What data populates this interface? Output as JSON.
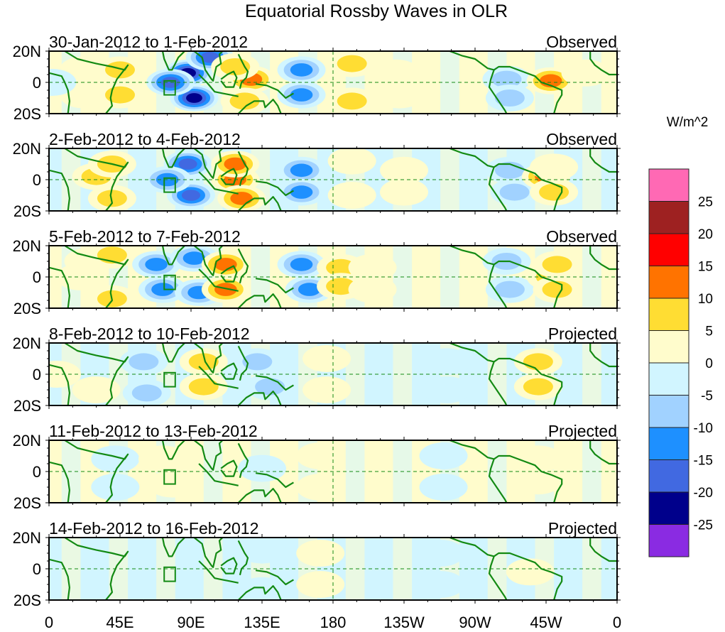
{
  "chart_data": {
    "type": "heatmap",
    "title": "Equatorial Rossby Waves in OLR",
    "colorbar": {
      "unit_label": "W/m^2",
      "levels": [
        25,
        20,
        15,
        10,
        5,
        0,
        -5,
        -10,
        -15,
        -20,
        -25
      ],
      "colors": [
        "#ff69b4",
        "#9e2121",
        "#ff0000",
        "#ff7300",
        "#ffdd33",
        "#fffccc",
        "#d1f5ff",
        "#a1d2ff",
        "#1e90ff",
        "#4169e1",
        "#00008b",
        "#8a2be2"
      ]
    },
    "x_axis": {
      "range_deg": [
        0,
        360
      ],
      "ticks": [
        0,
        45,
        90,
        135,
        180,
        225,
        270,
        315,
        360
      ],
      "tick_labels": [
        "0",
        "45E",
        "90E",
        "135E",
        "180",
        "135W",
        "90W",
        "45W",
        "0"
      ]
    },
    "y_axis": {
      "range_deg": [
        -20,
        20
      ],
      "ticks": [
        20,
        0,
        -20
      ],
      "tick_labels": [
        "20N",
        "0",
        "20S"
      ]
    },
    "panels": [
      {
        "date_range": "30-Jan-2012 to 1-Feb-2012",
        "status": "Observed",
        "anomalies": [
          {
            "lon": 22,
            "lat": 8,
            "value": 7
          },
          {
            "lon": 22,
            "lat": -8,
            "value": 7
          },
          {
            "lon": 45,
            "lat": 8,
            "value": 12
          },
          {
            "lon": 45,
            "lat": -8,
            "value": 12
          },
          {
            "lon": 2,
            "lat": 0,
            "value": -7
          },
          {
            "lon": 88,
            "lat": 6,
            "value": -24
          },
          {
            "lon": 92,
            "lat": -10,
            "value": -24
          },
          {
            "lon": 77,
            "lat": 0,
            "value": -22
          },
          {
            "lon": 102,
            "lat": 16,
            "value": -22
          },
          {
            "lon": 128,
            "lat": 2,
            "value": 17
          },
          {
            "lon": 118,
            "lat": 10,
            "value": 12
          },
          {
            "lon": 124,
            "lat": -12,
            "value": 12
          },
          {
            "lon": 160,
            "lat": 8,
            "value": -16
          },
          {
            "lon": 160,
            "lat": -8,
            "value": -16
          },
          {
            "lon": 192,
            "lat": 12,
            "value": 11
          },
          {
            "lon": 192,
            "lat": -12,
            "value": 11
          },
          {
            "lon": 220,
            "lat": 6,
            "value": 6
          },
          {
            "lon": 222,
            "lat": -8,
            "value": 6
          },
          {
            "lon": 290,
            "lat": 2,
            "value": -12
          },
          {
            "lon": 292,
            "lat": -10,
            "value": -12
          },
          {
            "lon": 318,
            "lat": 1,
            "value": 17
          },
          {
            "lon": 340,
            "lat": 6,
            "value": 6
          }
        ]
      },
      {
        "date_range": "2-Feb-2012 to 4-Feb-2012",
        "status": "Observed",
        "anomalies": [
          {
            "lon": 30,
            "lat": 2,
            "value": 11
          },
          {
            "lon": 40,
            "lat": 10,
            "value": 8
          },
          {
            "lon": 40,
            "lat": -12,
            "value": 10
          },
          {
            "lon": 88,
            "lat": 10,
            "value": -22
          },
          {
            "lon": 90,
            "lat": -10,
            "value": -22
          },
          {
            "lon": 75,
            "lat": 0,
            "value": -14
          },
          {
            "lon": 118,
            "lat": 0,
            "value": 14
          },
          {
            "lon": 118,
            "lat": 10,
            "value": 16
          },
          {
            "lon": 122,
            "lat": -12,
            "value": 16
          },
          {
            "lon": 160,
            "lat": 6,
            "value": -16
          },
          {
            "lon": 160,
            "lat": -8,
            "value": -16
          },
          {
            "lon": 192,
            "lat": 12,
            "value": 7
          },
          {
            "lon": 192,
            "lat": -10,
            "value": 7
          },
          {
            "lon": 225,
            "lat": 6,
            "value": 5
          },
          {
            "lon": 225,
            "lat": -8,
            "value": 5
          },
          {
            "lon": 292,
            "lat": 6,
            "value": -8
          },
          {
            "lon": 295,
            "lat": -8,
            "value": -12
          },
          {
            "lon": 315,
            "lat": 2,
            "value": 14
          },
          {
            "lon": 320,
            "lat": 8,
            "value": 7
          },
          {
            "lon": 320,
            "lat": -8,
            "value": 11
          }
        ]
      },
      {
        "date_range": "5-Feb-2012 to 7-Feb-2012",
        "status": "Observed",
        "anomalies": [
          {
            "lon": 20,
            "lat": 0,
            "value": 6
          },
          {
            "lon": 25,
            "lat": 10,
            "value": 6
          },
          {
            "lon": 40,
            "lat": 14,
            "value": 8
          },
          {
            "lon": 40,
            "lat": -14,
            "value": 8
          },
          {
            "lon": 68,
            "lat": 8,
            "value": -13
          },
          {
            "lon": 72,
            "lat": -8,
            "value": -15
          },
          {
            "lon": 92,
            "lat": 12,
            "value": -13
          },
          {
            "lon": 95,
            "lat": -10,
            "value": -15
          },
          {
            "lon": 112,
            "lat": 8,
            "value": 14
          },
          {
            "lon": 112,
            "lat": -8,
            "value": 16
          },
          {
            "lon": 160,
            "lat": 8,
            "value": -16
          },
          {
            "lon": 165,
            "lat": -8,
            "value": -16
          },
          {
            "lon": 185,
            "lat": 6,
            "value": 9
          },
          {
            "lon": 185,
            "lat": -6,
            "value": 9
          },
          {
            "lon": 205,
            "lat": 6,
            "value": 6
          },
          {
            "lon": 205,
            "lat": -8,
            "value": 6
          },
          {
            "lon": 290,
            "lat": 10,
            "value": -8
          },
          {
            "lon": 292,
            "lat": -8,
            "value": -8
          },
          {
            "lon": 318,
            "lat": 0,
            "value": 11
          },
          {
            "lon": 322,
            "lat": 8,
            "value": 10
          },
          {
            "lon": 322,
            "lat": -8,
            "value": 11
          }
        ]
      },
      {
        "date_range": "8-Feb-2012 to 10-Feb-2012",
        "status": "Projected",
        "anomalies": [
          {
            "lon": 5,
            "lat": 0,
            "value": 4
          },
          {
            "lon": 30,
            "lat": -10,
            "value": 4
          },
          {
            "lon": 60,
            "lat": 8,
            "value": -11
          },
          {
            "lon": 62,
            "lat": -12,
            "value": -11
          },
          {
            "lon": 98,
            "lat": 8,
            "value": 11
          },
          {
            "lon": 98,
            "lat": -8,
            "value": 11
          },
          {
            "lon": 132,
            "lat": 8,
            "value": -11
          },
          {
            "lon": 140,
            "lat": -8,
            "value": -10
          },
          {
            "lon": 176,
            "lat": 10,
            "value": 6
          },
          {
            "lon": 176,
            "lat": -10,
            "value": 6
          },
          {
            "lon": 252,
            "lat": 8,
            "value": -7
          },
          {
            "lon": 252,
            "lat": -10,
            "value": -7
          },
          {
            "lon": 310,
            "lat": 8,
            "value": 8
          },
          {
            "lon": 310,
            "lat": -8,
            "value": 8
          }
        ]
      },
      {
        "date_range": "11-Feb-2012 to 13-Feb-2012",
        "status": "Projected",
        "anomalies": [
          {
            "lon": 42,
            "lat": 8,
            "value": -6
          },
          {
            "lon": 42,
            "lat": -10,
            "value": -6
          },
          {
            "lon": 72,
            "lat": 8,
            "value": 5
          },
          {
            "lon": 78,
            "lat": -8,
            "value": 5
          },
          {
            "lon": 135,
            "lat": 2,
            "value": -6
          },
          {
            "lon": 172,
            "lat": 10,
            "value": 7
          },
          {
            "lon": 172,
            "lat": -10,
            "value": 7
          },
          {
            "lon": 250,
            "lat": 10,
            "value": -6
          },
          {
            "lon": 250,
            "lat": -10,
            "value": -6
          },
          {
            "lon": 310,
            "lat": 8,
            "value": 6
          },
          {
            "lon": 310,
            "lat": -6,
            "value": 6
          }
        ]
      },
      {
        "date_range": "14-Feb-2012 to 16-Feb-2012",
        "status": "Projected",
        "anomalies": [
          {
            "lon": 135,
            "lat": 12,
            "value": -5
          },
          {
            "lon": 135,
            "lat": -14,
            "value": -6
          },
          {
            "lon": 172,
            "lat": 10,
            "value": 6
          },
          {
            "lon": 172,
            "lat": -10,
            "value": 6
          },
          {
            "lon": 248,
            "lat": 10,
            "value": -6
          },
          {
            "lon": 248,
            "lat": -10,
            "value": -6
          },
          {
            "lon": 305,
            "lat": -2,
            "value": 6
          }
        ]
      }
    ]
  }
}
